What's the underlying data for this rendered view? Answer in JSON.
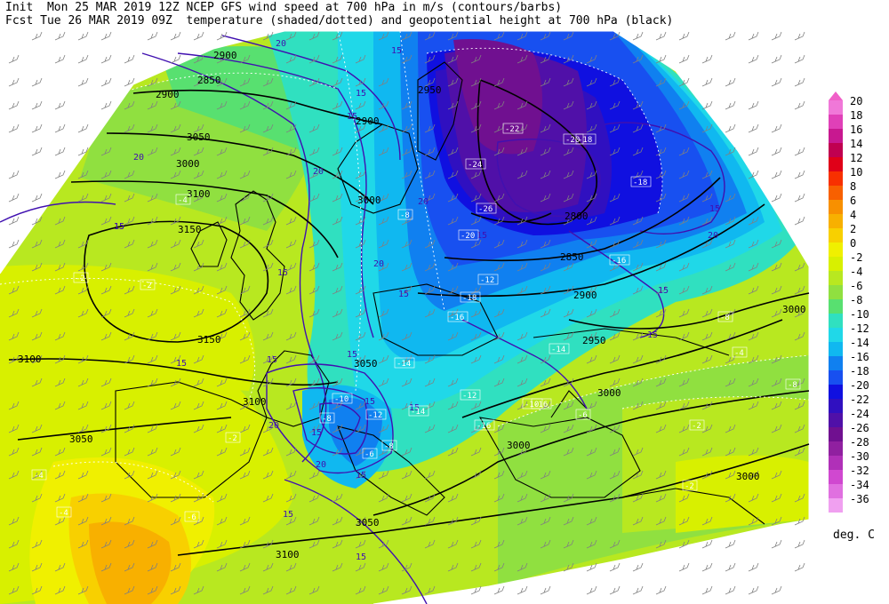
{
  "header": {
    "line1": "Init  Mon 25 MAR 2019 12Z NCEP GFS wind speed at 700 hPa in m/s (contours/barbs)",
    "line2": "Fcst Tue 26 MAR 2019 09Z  temperature (shaded/dotted) and geopotential height at 700 hPa (black)"
  },
  "colorbar": {
    "units": "deg. C",
    "levels": [
      {
        "label": "20",
        "color": "#f078d8"
      },
      {
        "label": "18",
        "color": "#e040b8"
      },
      {
        "label": "16",
        "color": "#c81890"
      },
      {
        "label": "14",
        "color": "#c00050"
      },
      {
        "label": "12",
        "color": "#e00018"
      },
      {
        "label": "10",
        "color": "#f83000"
      },
      {
        "label": "8",
        "color": "#f86000"
      },
      {
        "label": "6",
        "color": "#f89000"
      },
      {
        "label": "4",
        "color": "#f8b000"
      },
      {
        "label": "2",
        "color": "#f8d000"
      },
      {
        "label": "0",
        "color": "#f0f000"
      },
      {
        "label": "-2",
        "color": "#d8f000"
      },
      {
        "label": "-4",
        "color": "#b8e820"
      },
      {
        "label": "-6",
        "color": "#90e040"
      },
      {
        "label": "-8",
        "color": "#58e070"
      },
      {
        "label": "-10",
        "color": "#30e0c0"
      },
      {
        "label": "-12",
        "color": "#20d8e8"
      },
      {
        "label": "-14",
        "color": "#10b8f0"
      },
      {
        "label": "-16",
        "color": "#1080f0"
      },
      {
        "label": "-18",
        "color": "#1850f0"
      },
      {
        "label": "-20",
        "color": "#1010e0"
      },
      {
        "label": "-22",
        "color": "#3010c0"
      },
      {
        "label": "-24",
        "color": "#5010a8"
      },
      {
        "label": "-26",
        "color": "#701090"
      },
      {
        "label": "-28",
        "color": "#9020a0"
      },
      {
        "label": "-30",
        "color": "#b030b8"
      },
      {
        "label": "-32",
        "color": "#d048d0"
      },
      {
        "label": "-34",
        "color": "#e070e0"
      },
      {
        "label": "-36",
        "color": "#f0a0f0"
      }
    ]
  },
  "map": {
    "height_labels": [
      "2900",
      "3000",
      "3100",
      "3150",
      "3150",
      "3100",
      "3050",
      "3000",
      "2950",
      "2900",
      "2850",
      "2800",
      "3000",
      "3000",
      "3050",
      "3100",
      "3000",
      "3100",
      "3050",
      "3000",
      "2850",
      "2900",
      "2950",
      "2900",
      "3050"
    ],
    "wind_labels": [
      "20",
      "15",
      "15",
      "20",
      "20",
      "15",
      "15",
      "15",
      "20",
      "15",
      "15",
      "20",
      "15",
      "15",
      "15",
      "15",
      "15",
      "20",
      "15",
      "20",
      "15",
      "20",
      "15",
      "15",
      "15",
      "15",
      "15",
      "15"
    ],
    "temp_labels": [
      "-2",
      "-2",
      "-4",
      "-2",
      "-4",
      "-6",
      "-8",
      "-8",
      "-10",
      "-12",
      "-14",
      "-16",
      "-18",
      "-16",
      "-18",
      "-20",
      "-22",
      "-24",
      "-26",
      "-12",
      "-14",
      "-16",
      "-6",
      "-8",
      "-4",
      "-8",
      "-2",
      "-2",
      "-4",
      "-6",
      "-8",
      "-10",
      "-12",
      "-14",
      "-16",
      "-18",
      "-20"
    ]
  }
}
